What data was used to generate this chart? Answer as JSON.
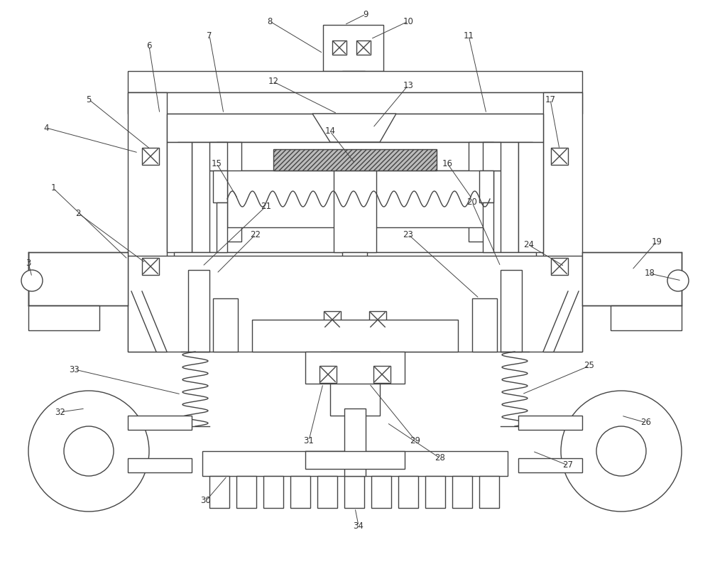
{
  "bg": "#ffffff",
  "lc": "#444444",
  "lw": 1.0,
  "fs": 8.5,
  "fc": "#333333"
}
